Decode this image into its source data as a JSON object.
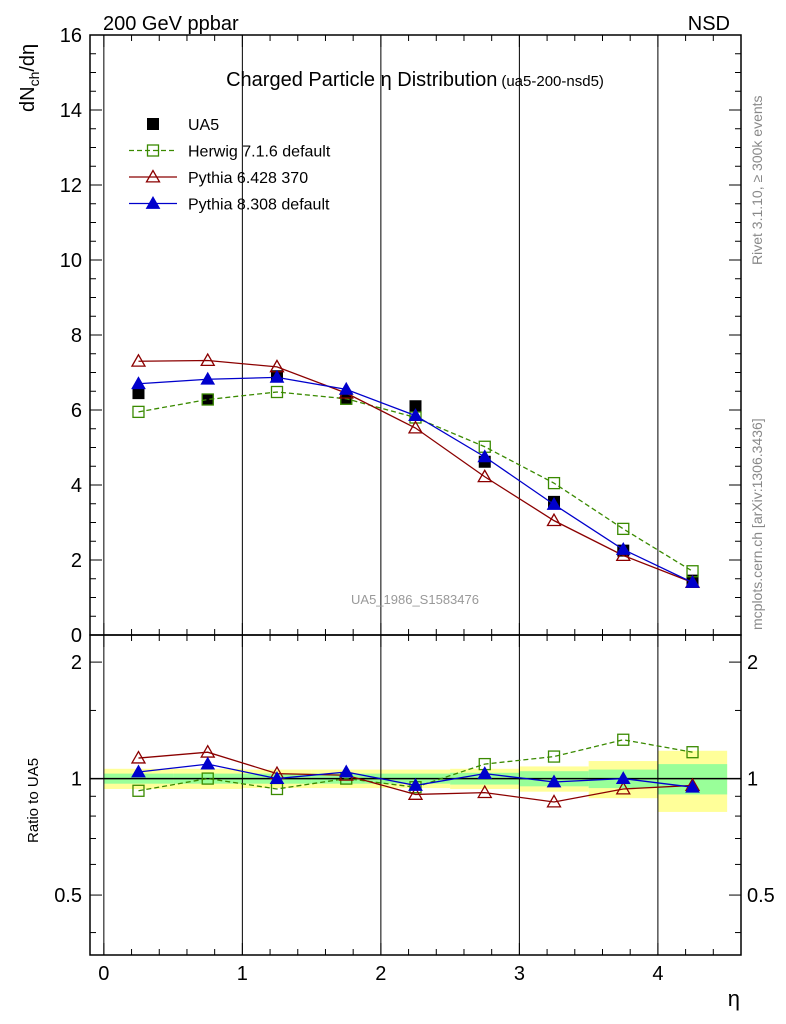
{
  "header": {
    "left": "200 GeV ppbar",
    "right": "NSD"
  },
  "side_text": {
    "rivet": "Rivet 3.1.10, ≥ 300k events",
    "mcplots": "mcplots.cern.ch [arXiv:1306.3436]"
  },
  "chart_data": [
    {
      "type": "line",
      "title": "Charged Particle η Distribution",
      "subtitle": "(ua5-200-nsd5)",
      "watermark": "UA5_1986_S1583476",
      "ylabel": "dN_ch/dη",
      "xlabel": "η",
      "xlim": [
        -0.1,
        4.6
      ],
      "ylim": [
        0,
        16
      ],
      "yticks": [
        0,
        2,
        4,
        6,
        8,
        10,
        12,
        14,
        16
      ],
      "ytick_labels": [
        "0",
        "2",
        "4",
        "6",
        "8",
        "10",
        "12",
        "14",
        "16"
      ],
      "legend_position": "top-left",
      "x": [
        0.25,
        0.75,
        1.25,
        1.75,
        2.25,
        2.75,
        3.25,
        3.75,
        4.25
      ],
      "series": [
        {
          "name": "UA5",
          "style": "data",
          "color": "#000000",
          "marker": "square-filled",
          "values": [
            6.45,
            6.28,
            6.9,
            6.3,
            6.1,
            4.62,
            3.55,
            2.25,
            1.45
          ]
        },
        {
          "name": "Herwig 7.1.6 default",
          "style": "dashed",
          "color": "#3a8a00",
          "marker": "square-open",
          "values": [
            5.95,
            6.28,
            6.48,
            6.3,
            5.8,
            5.02,
            4.05,
            2.83,
            1.7
          ]
        },
        {
          "name": "Pythia 6.428 370",
          "style": "solid",
          "color": "#8b0000",
          "marker": "triangle-open",
          "values": [
            7.3,
            7.32,
            7.15,
            6.45,
            5.52,
            4.22,
            3.05,
            2.12,
            1.4
          ]
        },
        {
          "name": "Pythia 8.308 default",
          "style": "solid",
          "color": "#0000cc",
          "marker": "triangle-filled",
          "values": [
            6.7,
            6.82,
            6.87,
            6.55,
            5.85,
            4.75,
            3.48,
            2.28,
            1.4
          ]
        }
      ]
    },
    {
      "type": "line",
      "ylabel": "Ratio to UA5",
      "xlabel": "η",
      "xlim": [
        -0.1,
        4.6
      ],
      "ylim": [
        0.35,
        2.35
      ],
      "yticks": [
        0.5,
        1,
        2
      ],
      "ytick_labels": [
        "0.5",
        "1",
        "2"
      ],
      "xticks": [
        0,
        1,
        2,
        3,
        4
      ],
      "xtick_labels": [
        "0",
        "1",
        "2",
        "3",
        "4"
      ],
      "x": [
        0.25,
        0.75,
        1.25,
        1.75,
        2.25,
        2.75,
        3.25,
        3.75,
        4.25
      ],
      "bands": {
        "edges": [
          0,
          0.5,
          1,
          1.5,
          2,
          2.5,
          3,
          3.5,
          4,
          4.5
        ],
        "inner": [
          [
            0.97,
            1.03
          ],
          [
            0.97,
            1.03
          ],
          [
            0.97,
            1.03
          ],
          [
            0.97,
            1.03
          ],
          [
            0.97,
            1.03
          ],
          [
            0.965,
            1.035
          ],
          [
            0.955,
            1.045
          ],
          [
            0.945,
            1.055
          ],
          [
            0.91,
            1.09
          ]
        ],
        "outer": [
          [
            0.94,
            1.06
          ],
          [
            0.94,
            1.06
          ],
          [
            0.945,
            1.055
          ],
          [
            0.945,
            1.055
          ],
          [
            0.945,
            1.055
          ],
          [
            0.94,
            1.06
          ],
          [
            0.925,
            1.075
          ],
          [
            0.89,
            1.11
          ],
          [
            0.82,
            1.18
          ]
        ],
        "inner_color": "#99ff99",
        "outer_color": "#ffff99"
      },
      "series": [
        {
          "name": "Herwig 7.1.6 default",
          "style": "dashed",
          "color": "#3a8a00",
          "marker": "square-open",
          "values": [
            0.93,
            1.0,
            0.94,
            1.0,
            0.95,
            1.09,
            1.14,
            1.26,
            1.17
          ]
        },
        {
          "name": "Pythia 6.428 370",
          "style": "solid",
          "color": "#8b0000",
          "marker": "triangle-open",
          "values": [
            1.13,
            1.17,
            1.03,
            1.02,
            0.91,
            0.92,
            0.87,
            0.94,
            0.96
          ]
        },
        {
          "name": "Pythia 8.308 default",
          "style": "solid",
          "color": "#0000cc",
          "marker": "triangle-filled",
          "values": [
            1.04,
            1.09,
            1.0,
            1.04,
            0.96,
            1.03,
            0.98,
            1.0,
            0.95
          ]
        }
      ]
    }
  ]
}
